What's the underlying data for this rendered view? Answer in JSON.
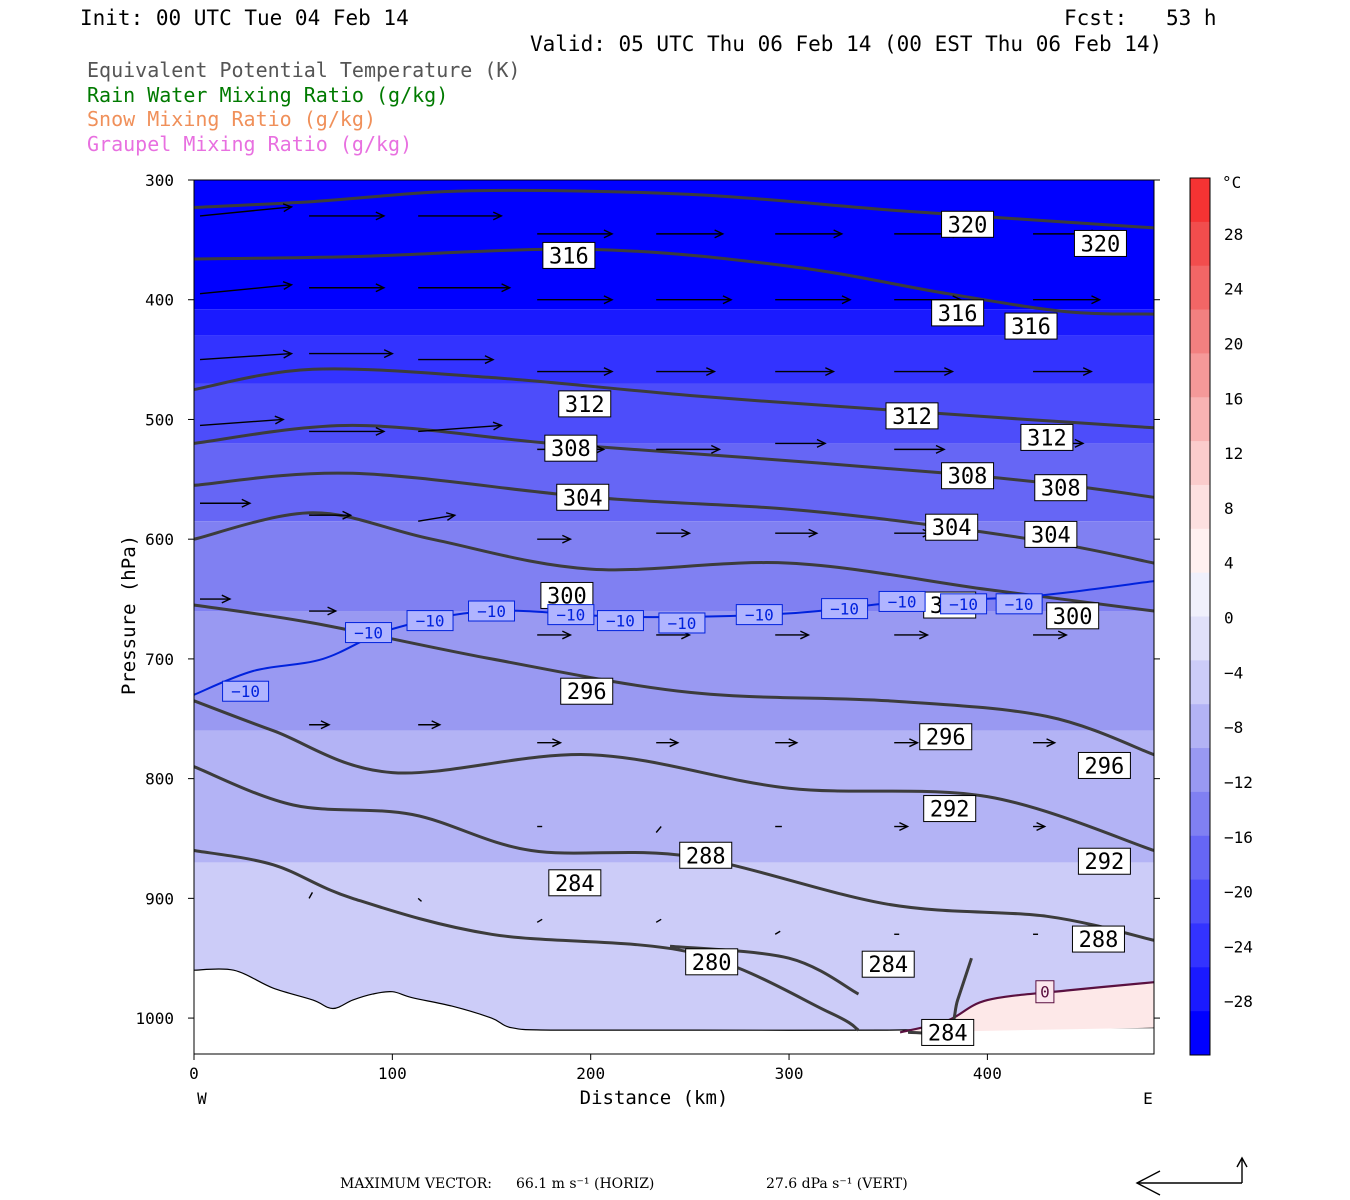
{
  "header": {
    "init": "Init: 00 UTC Tue 04 Feb 14",
    "fcst_label": "Fcst:",
    "fcst_value": "53 h",
    "valid": "Valid: 05 UTC Thu 06 Feb 14 (00 EST Thu 06 Feb 14)"
  },
  "legend": [
    {
      "text": "Equivalent Potential Temperature (K)",
      "color": "#555555"
    },
    {
      "text": "Rain Water Mixing Ratio (g/kg)",
      "color": "#007a00"
    },
    {
      "text": "Snow Mixing Ratio (g/kg)",
      "color": "#f0905a"
    },
    {
      "text": "Graupel Mixing Ratio (g/kg)",
      "color": "#e870e0"
    }
  ],
  "footer": {
    "label": "MAXIMUM VECTOR:",
    "horiz": "66.1 m s⁻¹ (HORIZ)",
    "vert": "27.6 dPa s⁻¹ (VERT)"
  },
  "chart_data": {
    "type": "cross-section contour",
    "title": "",
    "xlabel": "Distance (km)",
    "ylabel": "Pressure (hPa)",
    "xlim": [
      0,
      484
    ],
    "ylim": [
      1030,
      300
    ],
    "y_scale": "linear pressure, inverted",
    "x_ticks": [
      0,
      100,
      200,
      300,
      400
    ],
    "y_ticks": [
      300,
      400,
      500,
      600,
      700,
      800,
      900,
      1000
    ],
    "x_end_labels": {
      "left": "W",
      "right": "E"
    },
    "colorbar": {
      "unit": "°C",
      "min": -32,
      "max": 32,
      "step": 4,
      "tick_labels": [
        "28",
        "24",
        "20",
        "16",
        "12",
        "8",
        "4",
        "0",
        "−4",
        "−8",
        "−12",
        "−16",
        "−20",
        "−24",
        "−28"
      ],
      "tick_values": [
        28,
        24,
        20,
        16,
        12,
        8,
        4,
        0,
        -4,
        -8,
        -12,
        -16,
        -20,
        -24,
        -28
      ],
      "colors": [
        "#0000ff",
        "#1a1aff",
        "#3333ff",
        "#4d4dfa",
        "#6666f5",
        "#8080f2",
        "#9999f2",
        "#b3b3f5",
        "#ccccf8",
        "#e0e0fa",
        "#f0f0fc",
        "#fff0f0",
        "#fde0e0",
        "#fbcccc",
        "#f8b3b3",
        "#f59999",
        "#f28080",
        "#f26666",
        "#f24d4d",
        "#f53333"
      ]
    },
    "temperature_bands": [
      {
        "temp": -32,
        "p_top": 300,
        "p_bottom": 408
      },
      {
        "temp": -28,
        "p_top": 408,
        "p_bottom": 430
      },
      {
        "temp": -24,
        "p_top": 430,
        "p_bottom": 470
      },
      {
        "temp": -20,
        "p_top": 470,
        "p_bottom": 520
      },
      {
        "temp": -16,
        "p_top": 520,
        "p_bottom": 585
      },
      {
        "temp": -12,
        "p_top": 585,
        "p_bottom": 660
      },
      {
        "temp": -8,
        "p_top": 660,
        "p_bottom": 760
      },
      {
        "temp": -4,
        "p_top": 760,
        "p_bottom": 870
      },
      {
        "temp": 0,
        "p_top": 870,
        "p_bottom": 1030
      }
    ],
    "theta_e_contours": [
      {
        "level": 320,
        "x": [
          0,
          60,
          140,
          250,
          350,
          420,
          484
        ],
        "p": [
          323,
          318,
          309,
          312,
          325,
          333,
          340
        ]
      },
      {
        "level": 316,
        "x": [
          0,
          80,
          200,
          300,
          380,
          440,
          484
        ],
        "p": [
          366,
          364,
          358,
          372,
          395,
          410,
          412
        ]
      },
      {
        "level": 312,
        "x": [
          0,
          60,
          150,
          250,
          350,
          420,
          484
        ],
        "p": [
          475,
          458,
          465,
          480,
          492,
          500,
          507
        ]
      },
      {
        "level": 308,
        "x": [
          0,
          80,
          180,
          280,
          380,
          440,
          484
        ],
        "p": [
          520,
          505,
          520,
          532,
          545,
          555,
          565
        ]
      },
      {
        "level": 304,
        "x": [
          0,
          80,
          200,
          300,
          380,
          440,
          484
        ],
        "p": [
          555,
          545,
          565,
          575,
          590,
          605,
          620
        ]
      },
      {
        "level": 300,
        "x": [
          0,
          60,
          120,
          200,
          300,
          400,
          484
        ],
        "p": [
          600,
          578,
          600,
          625,
          620,
          642,
          660
        ]
      },
      {
        "level": 296,
        "x": [
          0,
          60,
          150,
          250,
          350,
          430,
          484
        ],
        "p": [
          655,
          670,
          700,
          728,
          735,
          748,
          780
        ]
      },
      {
        "level": 292,
        "x": [
          0,
          40,
          100,
          200,
          300,
          400,
          484
        ],
        "p": [
          735,
          760,
          795,
          780,
          808,
          815,
          860
        ]
      },
      {
        "level": 288,
        "x": [
          0,
          50,
          110,
          170,
          250,
          350,
          430,
          484
        ],
        "p": [
          790,
          822,
          830,
          860,
          865,
          905,
          915,
          935
        ]
      },
      {
        "level": 284,
        "x": [
          0,
          40,
          80,
          150,
          250,
          320,
          335
        ],
        "p": [
          860,
          872,
          900,
          930,
          945,
          995,
          1010
        ]
      },
      {
        "level": 280,
        "x": [
          240,
          300,
          335
        ],
        "p": [
          940,
          950,
          980
        ]
      },
      {
        "level": 284,
        "x": [
          360,
          380,
          385,
          392
        ],
        "p": [
          1012,
          1010,
          985,
          950
        ]
      }
    ],
    "theta_e_labels": [
      {
        "text": "320",
        "x": 390,
        "p": 337
      },
      {
        "text": "320",
        "x": 457,
        "p": 353
      },
      {
        "text": "316",
        "x": 189,
        "p": 363
      },
      {
        "text": "316",
        "x": 385,
        "p": 411
      },
      {
        "text": "316",
        "x": 422,
        "p": 422
      },
      {
        "text": "312",
        "x": 197,
        "p": 487
      },
      {
        "text": "312",
        "x": 362,
        "p": 497
      },
      {
        "text": "312",
        "x": 430,
        "p": 515
      },
      {
        "text": "308",
        "x": 190,
        "p": 524
      },
      {
        "text": "308",
        "x": 390,
        "p": 547
      },
      {
        "text": "308",
        "x": 437,
        "p": 557
      },
      {
        "text": "304",
        "x": 196,
        "p": 565
      },
      {
        "text": "304",
        "x": 382,
        "p": 590
      },
      {
        "text": "304",
        "x": 432,
        "p": 596
      },
      {
        "text": "300",
        "x": 188,
        "p": 647
      },
      {
        "text": "300",
        "x": 381,
        "p": 655
      },
      {
        "text": "300",
        "x": 443,
        "p": 664
      },
      {
        "text": "296",
        "x": 198,
        "p": 727
      },
      {
        "text": "296",
        "x": 379,
        "p": 765
      },
      {
        "text": "296",
        "x": 459,
        "p": 789
      },
      {
        "text": "292",
        "x": 381,
        "p": 825
      },
      {
        "text": "292",
        "x": 459,
        "p": 869
      },
      {
        "text": "288",
        "x": 258,
        "p": 864
      },
      {
        "text": "288",
        "x": 456,
        "p": 934
      },
      {
        "text": "284",
        "x": 192,
        "p": 887
      },
      {
        "text": "284",
        "x": 350,
        "p": 955
      },
      {
        "text": "284",
        "x": 380,
        "p": 1012
      },
      {
        "text": "280",
        "x": 261,
        "p": 953
      }
    ],
    "isotherm_minus10": {
      "level": -10,
      "x": [
        0,
        30,
        65,
        100,
        150,
        220,
        300,
        360,
        420,
        484
      ],
      "p": [
        730,
        710,
        700,
        675,
        660,
        665,
        662,
        652,
        648,
        635
      ]
    },
    "isotherm_labels": [
      {
        "text": "−10",
        "x": 26,
        "p": 727
      },
      {
        "text": "−10",
        "x": 88,
        "p": 678
      },
      {
        "text": "−10",
        "x": 119,
        "p": 668
      },
      {
        "text": "−10",
        "x": 150,
        "p": 660
      },
      {
        "text": "−10",
        "x": 190,
        "p": 663
      },
      {
        "text": "−10",
        "x": 215,
        "p": 668
      },
      {
        "text": "−10",
        "x": 246,
        "p": 670
      },
      {
        "text": "−10",
        "x": 285,
        "p": 663
      },
      {
        "text": "−10",
        "x": 328,
        "p": 658
      },
      {
        "text": "−10",
        "x": 357,
        "p": 652
      },
      {
        "text": "−10",
        "x": 388,
        "p": 654
      },
      {
        "text": "−10",
        "x": 416,
        "p": 654
      }
    ],
    "zero_contour": {
      "level": 0,
      "x": [
        356,
        380,
        400,
        440,
        484
      ],
      "p": [
        1012,
        1002,
        985,
        977,
        970
      ],
      "label_x": 429,
      "label_p": 978
    },
    "terrain_surface": {
      "x": [
        0,
        20,
        40,
        60,
        70,
        80,
        90,
        100,
        110,
        130,
        150,
        160,
        180,
        250,
        350,
        420,
        484
      ],
      "p": [
        960,
        960,
        975,
        985,
        992,
        985,
        980,
        978,
        983,
        990,
        1000,
        1008,
        1010,
        1010,
        1010,
        1008,
        1008
      ]
    },
    "wind_vectors": [
      {
        "x": 0,
        "p": 330,
        "u": 55,
        "w": -3
      },
      {
        "x": 55,
        "p": 330,
        "u": 45,
        "w": 0
      },
      {
        "x": 110,
        "p": 330,
        "u": 50,
        "w": 0
      },
      {
        "x": 170,
        "p": 345,
        "u": 45,
        "w": 0
      },
      {
        "x": 230,
        "p": 345,
        "u": 40,
        "w": 0
      },
      {
        "x": 290,
        "p": 345,
        "u": 40,
        "w": 0
      },
      {
        "x": 350,
        "p": 345,
        "u": 40,
        "w": 0
      },
      {
        "x": 420,
        "p": 345,
        "u": 40,
        "w": 0
      },
      {
        "x": 0,
        "p": 395,
        "u": 55,
        "w": -3
      },
      {
        "x": 55,
        "p": 390,
        "u": 45,
        "w": 0
      },
      {
        "x": 110,
        "p": 390,
        "u": 55,
        "w": 0
      },
      {
        "x": 170,
        "p": 400,
        "u": 45,
        "w": 0
      },
      {
        "x": 230,
        "p": 400,
        "u": 45,
        "w": 0
      },
      {
        "x": 290,
        "p": 400,
        "u": 45,
        "w": 0
      },
      {
        "x": 350,
        "p": 400,
        "u": 40,
        "w": 0
      },
      {
        "x": 420,
        "p": 400,
        "u": 40,
        "w": 0
      },
      {
        "x": 0,
        "p": 450,
        "u": 55,
        "w": -2
      },
      {
        "x": 55,
        "p": 445,
        "u": 50,
        "w": 0
      },
      {
        "x": 110,
        "p": 450,
        "u": 45,
        "w": 0
      },
      {
        "x": 170,
        "p": 460,
        "u": 45,
        "w": 0
      },
      {
        "x": 230,
        "p": 460,
        "u": 35,
        "w": 0
      },
      {
        "x": 290,
        "p": 460,
        "u": 35,
        "w": 0
      },
      {
        "x": 350,
        "p": 460,
        "u": 35,
        "w": 0
      },
      {
        "x": 420,
        "p": 460,
        "u": 35,
        "w": 0
      },
      {
        "x": 0,
        "p": 505,
        "u": 50,
        "w": -2
      },
      {
        "x": 55,
        "p": 510,
        "u": 45,
        "w": 0
      },
      {
        "x": 110,
        "p": 510,
        "u": 50,
        "w": -2
      },
      {
        "x": 170,
        "p": 525,
        "u": 40,
        "w": 0
      },
      {
        "x": 230,
        "p": 525,
        "u": 38,
        "w": 0
      },
      {
        "x": 290,
        "p": 520,
        "u": 30,
        "w": 0
      },
      {
        "x": 350,
        "p": 525,
        "u": 30,
        "w": 0
      },
      {
        "x": 420,
        "p": 520,
        "u": 30,
        "w": 0
      },
      {
        "x": 0,
        "p": 570,
        "u": 30,
        "w": 0
      },
      {
        "x": 55,
        "p": 580,
        "u": 25,
        "w": 0
      },
      {
        "x": 110,
        "p": 585,
        "u": 22,
        "w": -2
      },
      {
        "x": 170,
        "p": 600,
        "u": 20,
        "w": 0
      },
      {
        "x": 230,
        "p": 595,
        "u": 20,
        "w": 0
      },
      {
        "x": 290,
        "p": 595,
        "u": 25,
        "w": 0
      },
      {
        "x": 350,
        "p": 595,
        "u": 22,
        "w": 0
      },
      {
        "x": 420,
        "p": 595,
        "u": 20,
        "w": 0
      },
      {
        "x": 0,
        "p": 650,
        "u": 18,
        "w": 0
      },
      {
        "x": 55,
        "p": 660,
        "u": 16,
        "w": 0
      },
      {
        "x": 110,
        "p": 670,
        "u": 18,
        "w": 0
      },
      {
        "x": 170,
        "p": 680,
        "u": 20,
        "w": 0
      },
      {
        "x": 230,
        "p": 680,
        "u": 20,
        "w": 0
      },
      {
        "x": 290,
        "p": 680,
        "u": 20,
        "w": 0
      },
      {
        "x": 350,
        "p": 680,
        "u": 20,
        "w": 0
      },
      {
        "x": 420,
        "p": 680,
        "u": 20,
        "w": 0
      },
      {
        "x": 55,
        "p": 755,
        "u": 12,
        "w": 0
      },
      {
        "x": 110,
        "p": 755,
        "u": 13,
        "w": 0
      },
      {
        "x": 170,
        "p": 770,
        "u": 14,
        "w": 0
      },
      {
        "x": 230,
        "p": 770,
        "u": 13,
        "w": 0
      },
      {
        "x": 290,
        "p": 770,
        "u": 13,
        "w": 0
      },
      {
        "x": 350,
        "p": 770,
        "u": 14,
        "w": 0
      },
      {
        "x": 420,
        "p": 770,
        "u": 13,
        "w": 0
      },
      {
        "x": 170,
        "p": 840,
        "u": 3,
        "w": 0
      },
      {
        "x": 230,
        "p": 845,
        "u": 3,
        "w": -2
      },
      {
        "x": 290,
        "p": 840,
        "u": 4,
        "w": 0
      },
      {
        "x": 350,
        "p": 840,
        "u": 8,
        "w": 0
      },
      {
        "x": 420,
        "p": 840,
        "u": 7,
        "w": 0
      },
      {
        "x": 55,
        "p": 900,
        "u": 2,
        "w": -2
      },
      {
        "x": 110,
        "p": 900,
        "u": 2,
        "w": 1
      },
      {
        "x": 170,
        "p": 920,
        "u": 3,
        "w": -1
      },
      {
        "x": 230,
        "p": 920,
        "u": 3,
        "w": -1
      },
      {
        "x": 290,
        "p": 930,
        "u": 3,
        "w": -1
      },
      {
        "x": 350,
        "p": 930,
        "u": 3,
        "w": 0
      },
      {
        "x": 420,
        "p": 930,
        "u": 3,
        "w": 0
      }
    ],
    "max_vector": {
      "horiz": 66.1,
      "horiz_unit": "m s⁻¹",
      "vert": 27.6,
      "vert_unit": "dPa s⁻¹"
    }
  }
}
